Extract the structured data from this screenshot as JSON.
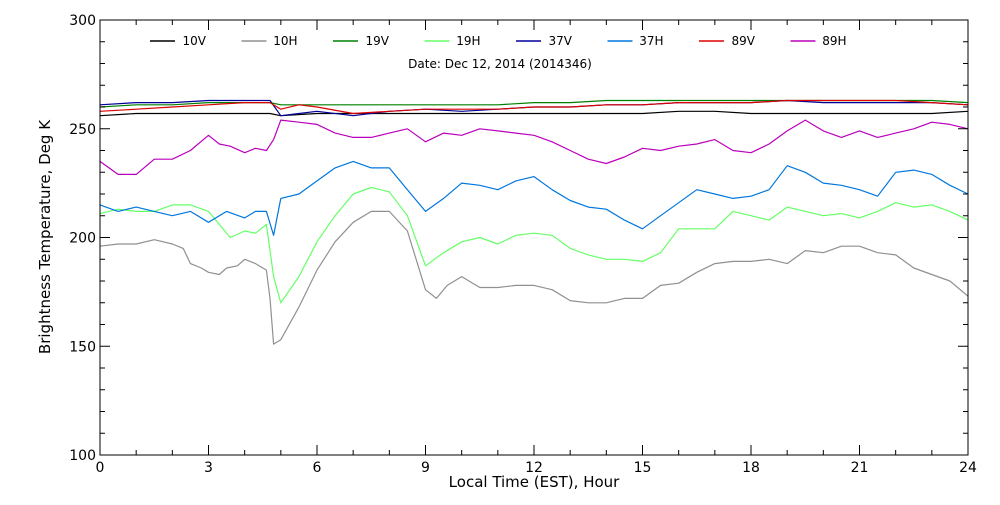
{
  "chart_data": {
    "type": "line",
    "subtitle": "Date: Dec 12, 2014 (2014346)",
    "xlabel": "Local Time (EST), Hour",
    "ylabel": "Brightness Temperature, Deg K",
    "xlim": [
      0,
      24
    ],
    "ylim": [
      100,
      300
    ],
    "xticks": [
      0,
      3,
      6,
      9,
      12,
      15,
      18,
      21,
      24
    ],
    "yticks": [
      100,
      150,
      200,
      250,
      300
    ],
    "grid": false,
    "legend_position": "top",
    "series": [
      {
        "name": "10V",
        "color": "#000000",
        "x": [
          0,
          1,
          2,
          3,
          4,
          4.7,
          5,
          6,
          7,
          8,
          9,
          10,
          11,
          12,
          13,
          14,
          15,
          16,
          17,
          18,
          19,
          20,
          21,
          22,
          23,
          24
        ],
        "y": [
          256,
          257,
          257,
          257,
          257,
          257,
          256,
          257,
          257,
          257,
          257,
          257,
          257,
          257,
          257,
          257,
          257,
          258,
          258,
          257,
          257,
          257,
          257,
          257,
          257,
          258
        ]
      },
      {
        "name": "10H",
        "color": "#909090",
        "x": [
          0,
          0.5,
          1,
          1.5,
          2,
          2.3,
          2.5,
          2.8,
          3,
          3.3,
          3.5,
          3.8,
          4,
          4.3,
          4.6,
          4.7,
          4.8,
          5,
          5.5,
          6,
          6.5,
          7,
          7.5,
          8,
          8.5,
          9,
          9.3,
          9.6,
          10,
          10.5,
          11,
          11.5,
          12,
          12.5,
          13,
          13.5,
          14,
          14.5,
          15,
          15.5,
          16,
          16.5,
          17,
          17.5,
          18,
          18.5,
          19,
          19.5,
          20,
          20.5,
          21,
          21.5,
          22,
          22.5,
          23,
          23.5,
          24
        ],
        "y": [
          196,
          197,
          197,
          199,
          197,
          195,
          188,
          186,
          184,
          183,
          186,
          187,
          190,
          188,
          185,
          172,
          151,
          153,
          168,
          185,
          198,
          207,
          212,
          212,
          203,
          176,
          172,
          178,
          182,
          177,
          177,
          178,
          178,
          176,
          171,
          170,
          170,
          172,
          172,
          178,
          179,
          184,
          188,
          189,
          189,
          190,
          188,
          194,
          193,
          196,
          196,
          193,
          192,
          186,
          183,
          180,
          173
        ]
      },
      {
        "name": "19V",
        "color": "#008000",
        "x": [
          0,
          1,
          2,
          3,
          4,
          4.7,
          5,
          6,
          7,
          8,
          9,
          10,
          11,
          12,
          13,
          14,
          15,
          16,
          17,
          18,
          19,
          20,
          21,
          22,
          23,
          24
        ],
        "y": [
          260,
          261,
          261,
          262,
          262,
          262,
          261,
          261,
          261,
          261,
          261,
          261,
          261,
          262,
          262,
          263,
          263,
          263,
          263,
          263,
          263,
          263,
          263,
          263,
          263,
          262
        ]
      },
      {
        "name": "19H",
        "color": "#66ff66",
        "x": [
          0,
          0.5,
          1,
          1.5,
          2,
          2.5,
          3,
          3.3,
          3.6,
          4,
          4.3,
          4.6,
          4.8,
          5,
          5.5,
          6,
          6.5,
          7,
          7.5,
          8,
          8.5,
          9,
          9.5,
          10,
          10.5,
          11,
          11.5,
          12,
          12.5,
          13,
          13.5,
          14,
          14.5,
          15,
          15.5,
          16,
          16.5,
          17,
          17.5,
          18,
          18.5,
          19,
          19.5,
          20,
          20.5,
          21,
          21.5,
          22,
          22.5,
          23,
          23.5,
          24
        ],
        "y": [
          211,
          213,
          212,
          212,
          215,
          215,
          212,
          206,
          200,
          203,
          202,
          206,
          182,
          170,
          182,
          198,
          210,
          220,
          223,
          221,
          210,
          187,
          193,
          198,
          200,
          197,
          201,
          202,
          201,
          195,
          192,
          190,
          190,
          189,
          193,
          204,
          204,
          204,
          212,
          210,
          208,
          214,
          212,
          210,
          211,
          209,
          212,
          216,
          214,
          215,
          212,
          208
        ]
      },
      {
        "name": "37V",
        "color": "#000099",
        "x": [
          0,
          1,
          2,
          3,
          4,
          4.7,
          5,
          5.5,
          6,
          7,
          8,
          9,
          10,
          11,
          12,
          13,
          14,
          15,
          16,
          17,
          18,
          19,
          20,
          21,
          22,
          23,
          24
        ],
        "y": [
          261,
          262,
          262,
          263,
          263,
          263,
          256,
          257,
          258,
          256,
          258,
          259,
          258,
          259,
          260,
          260,
          261,
          261,
          262,
          262,
          262,
          263,
          262,
          262,
          262,
          262,
          261
        ]
      },
      {
        "name": "37H",
        "color": "#0077dd",
        "x": [
          0,
          0.5,
          1,
          1.5,
          2,
          2.5,
          3,
          3.5,
          4,
          4.3,
          4.6,
          4.8,
          5,
          5.5,
          6,
          6.5,
          7,
          7.5,
          8,
          8.5,
          9,
          9.5,
          10,
          10.5,
          11,
          11.5,
          12,
          12.5,
          13,
          13.5,
          14,
          14.5,
          15,
          15.5,
          16,
          16.5,
          17,
          17.5,
          18,
          18.5,
          19,
          19.5,
          20,
          20.5,
          21,
          21.5,
          22,
          22.5,
          23,
          23.5,
          24
        ],
        "y": [
          215,
          212,
          214,
          212,
          210,
          212,
          207,
          212,
          209,
          212,
          212,
          201,
          218,
          220,
          226,
          232,
          235,
          232,
          232,
          222,
          212,
          218,
          225,
          224,
          222,
          226,
          228,
          222,
          217,
          214,
          213,
          208,
          204,
          210,
          216,
          222,
          220,
          218,
          219,
          222,
          233,
          230,
          225,
          224,
          222,
          219,
          230,
          231,
          229,
          224,
          220
        ]
      },
      {
        "name": "89V",
        "color": "#dd0000",
        "x": [
          0,
          1,
          2,
          3,
          4,
          4.7,
          5,
          5.5,
          6,
          7,
          8,
          9,
          10,
          11,
          12,
          13,
          14,
          15,
          16,
          17,
          18,
          19,
          20,
          21,
          22,
          23,
          24
        ],
        "y": [
          258,
          259,
          260,
          261,
          262,
          262,
          259,
          261,
          260,
          257,
          258,
          259,
          259,
          259,
          260,
          260,
          261,
          261,
          262,
          262,
          262,
          263,
          263,
          263,
          263,
          262,
          261
        ]
      },
      {
        "name": "89H",
        "color": "#bb00bb",
        "x": [
          0,
          0.5,
          1,
          1.5,
          2,
          2.5,
          3,
          3.3,
          3.6,
          4,
          4.3,
          4.6,
          4.8,
          5,
          5.5,
          6,
          6.5,
          7,
          7.5,
          8,
          8.5,
          9,
          9.5,
          10,
          10.5,
          11,
          11.5,
          12,
          12.5,
          13,
          13.5,
          14,
          14.5,
          15,
          15.5,
          16,
          16.5,
          17,
          17.5,
          18,
          18.5,
          19,
          19.5,
          20,
          20.5,
          21,
          21.5,
          22,
          22.5,
          23,
          23.5,
          24
        ],
        "y": [
          235,
          229,
          229,
          236,
          236,
          240,
          247,
          243,
          242,
          239,
          241,
          240,
          245,
          254,
          253,
          252,
          248,
          246,
          246,
          248,
          250,
          244,
          248,
          247,
          250,
          249,
          248,
          247,
          244,
          240,
          236,
          234,
          237,
          241,
          240,
          242,
          243,
          245,
          240,
          239,
          243,
          249,
          254,
          249,
          246,
          249,
          246,
          248,
          250,
          253,
          252,
          250
        ]
      }
    ]
  }
}
